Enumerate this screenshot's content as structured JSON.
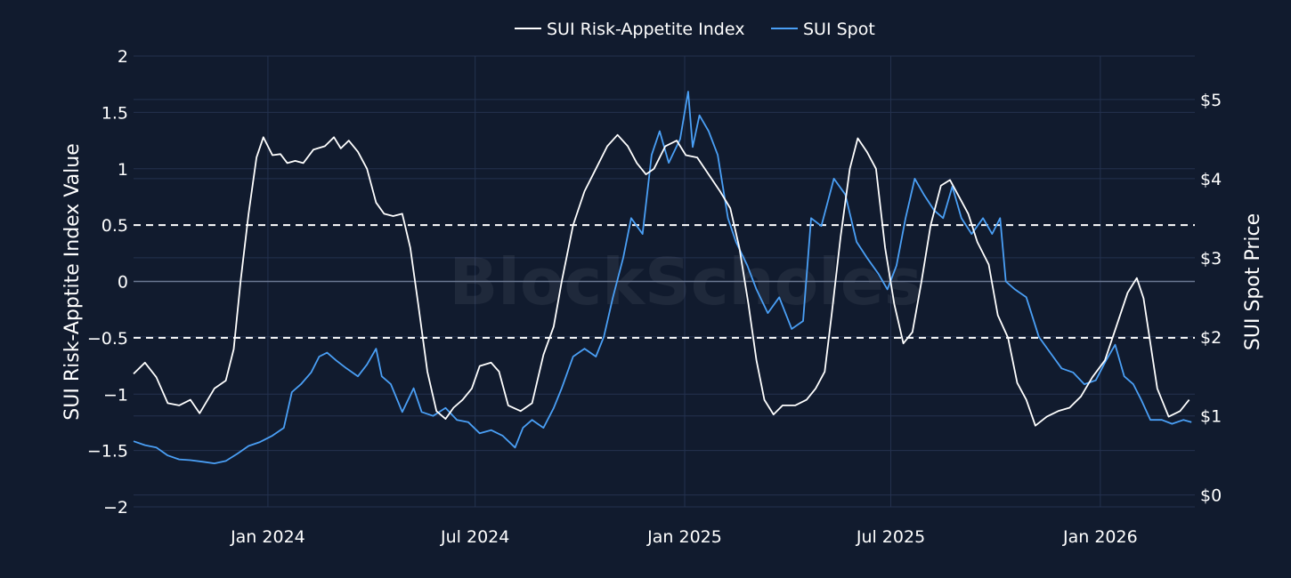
{
  "colors": {
    "background": "#111b2e",
    "grid": "#24324f",
    "zero_line": "#6b7892",
    "threshold_line": "#ffffff",
    "index_line": "#ffffff",
    "spot_line": "#4a9ff5"
  },
  "watermark": "BlockScholes",
  "chart_data": {
    "type": "line",
    "legend": {
      "placement": "top-center",
      "entries": [
        "SUI Risk-Appetite Index",
        "SUI Spot"
      ]
    },
    "xlabel": "",
    "ylabel_left": "SUI Risk-Apptite Index Value",
    "ylabel_right": "SUI Spot Price",
    "grid": true,
    "x_range": [
      "2023-09-05",
      "2026-03-25"
    ],
    "y_left_range": [
      -2,
      2
    ],
    "y_right_range": [
      -0.15,
      5.55
    ],
    "x_ticks": [
      {
        "date": "2024-01-01",
        "label": "Jan 2024"
      },
      {
        "date": "2024-07-01",
        "label": "Jul 2024"
      },
      {
        "date": "2025-01-01",
        "label": "Jan 2025"
      },
      {
        "date": "2025-07-01",
        "label": "Jul 2025"
      },
      {
        "date": "2026-01-01",
        "label": "Jan 2026"
      }
    ],
    "y_left_ticks": [
      {
        "value": 2,
        "label": "2"
      },
      {
        "value": 1.5,
        "label": "1.5"
      },
      {
        "value": 1,
        "label": "1"
      },
      {
        "value": 0.5,
        "label": "0.5"
      },
      {
        "value": 0,
        "label": "0"
      },
      {
        "value": -0.5,
        "label": "−0.5"
      },
      {
        "value": -1,
        "label": "−1"
      },
      {
        "value": -1.5,
        "label": "−1.5"
      },
      {
        "value": -2,
        "label": "−2"
      }
    ],
    "y_right_ticks": [
      {
        "value": 0,
        "label": "$0"
      },
      {
        "value": 1,
        "label": "$1"
      },
      {
        "value": 2,
        "label": "$2"
      },
      {
        "value": 3,
        "label": "$3"
      },
      {
        "value": 4,
        "label": "$4"
      },
      {
        "value": 5,
        "label": "$5"
      }
    ],
    "thresholds": [
      0.5,
      -0.5
    ],
    "series": [
      {
        "name": "SUI Risk-Appetite Index",
        "axis": "left",
        "points": [
          [
            "2023-09-05",
            -0.82
          ],
          [
            "2023-09-15",
            -0.72
          ],
          [
            "2023-09-25",
            -0.85
          ],
          [
            "2023-10-05",
            -1.08
          ],
          [
            "2023-10-15",
            -1.1
          ],
          [
            "2023-10-25",
            -1.05
          ],
          [
            "2023-11-02",
            -1.17
          ],
          [
            "2023-11-15",
            -0.95
          ],
          [
            "2023-11-25",
            -0.88
          ],
          [
            "2023-12-02",
            -0.6
          ],
          [
            "2023-12-08",
            0.0
          ],
          [
            "2023-12-15",
            0.6
          ],
          [
            "2023-12-22",
            1.1
          ],
          [
            "2023-12-28",
            1.28
          ],
          [
            "2024-01-05",
            1.12
          ],
          [
            "2024-01-12",
            1.13
          ],
          [
            "2024-01-18",
            1.05
          ],
          [
            "2024-01-25",
            1.07
          ],
          [
            "2024-02-01",
            1.05
          ],
          [
            "2024-02-10",
            1.17
          ],
          [
            "2024-02-20",
            1.2
          ],
          [
            "2024-02-28",
            1.28
          ],
          [
            "2024-03-05",
            1.18
          ],
          [
            "2024-03-12",
            1.25
          ],
          [
            "2024-03-20",
            1.15
          ],
          [
            "2024-03-28",
            1.0
          ],
          [
            "2024-04-05",
            0.7
          ],
          [
            "2024-04-12",
            0.6
          ],
          [
            "2024-04-20",
            0.58
          ],
          [
            "2024-04-28",
            0.6
          ],
          [
            "2024-05-05",
            0.3
          ],
          [
            "2024-05-12",
            -0.2
          ],
          [
            "2024-05-20",
            -0.8
          ],
          [
            "2024-05-28",
            -1.15
          ],
          [
            "2024-06-05",
            -1.22
          ],
          [
            "2024-06-12",
            -1.12
          ],
          [
            "2024-06-20",
            -1.05
          ],
          [
            "2024-06-28",
            -0.95
          ],
          [
            "2024-07-05",
            -0.75
          ],
          [
            "2024-07-15",
            -0.72
          ],
          [
            "2024-07-22",
            -0.8
          ],
          [
            "2024-07-30",
            -1.1
          ],
          [
            "2024-08-10",
            -1.15
          ],
          [
            "2024-08-20",
            -1.08
          ],
          [
            "2024-08-30",
            -0.65
          ],
          [
            "2024-09-08",
            -0.4
          ],
          [
            "2024-09-15",
            0.0
          ],
          [
            "2024-09-25",
            0.5
          ],
          [
            "2024-10-05",
            0.8
          ],
          [
            "2024-10-15",
            1.0
          ],
          [
            "2024-10-25",
            1.2
          ],
          [
            "2024-11-03",
            1.3
          ],
          [
            "2024-11-12",
            1.2
          ],
          [
            "2024-11-20",
            1.05
          ],
          [
            "2024-11-28",
            0.95
          ],
          [
            "2024-12-05",
            1.0
          ],
          [
            "2024-12-15",
            1.2
          ],
          [
            "2024-12-25",
            1.25
          ],
          [
            "2025-01-02",
            1.12
          ],
          [
            "2025-01-12",
            1.1
          ],
          [
            "2025-01-22",
            0.95
          ],
          [
            "2025-02-01",
            0.8
          ],
          [
            "2025-02-10",
            0.65
          ],
          [
            "2025-02-18",
            0.3
          ],
          [
            "2025-02-26",
            -0.2
          ],
          [
            "2025-03-05",
            -0.7
          ],
          [
            "2025-03-12",
            -1.05
          ],
          [
            "2025-03-20",
            -1.18
          ],
          [
            "2025-03-28",
            -1.1
          ],
          [
            "2025-04-08",
            -1.1
          ],
          [
            "2025-04-18",
            -1.05
          ],
          [
            "2025-04-26",
            -0.95
          ],
          [
            "2025-05-04",
            -0.8
          ],
          [
            "2025-05-10",
            -0.3
          ],
          [
            "2025-05-18",
            0.4
          ],
          [
            "2025-05-26",
            1.0
          ],
          [
            "2025-06-02",
            1.27
          ],
          [
            "2025-06-10",
            1.15
          ],
          [
            "2025-06-18",
            1.0
          ],
          [
            "2025-06-26",
            0.3
          ],
          [
            "2025-07-04",
            -0.2
          ],
          [
            "2025-07-12",
            -0.55
          ],
          [
            "2025-07-20",
            -0.45
          ],
          [
            "2025-07-28",
            0.0
          ],
          [
            "2025-08-05",
            0.5
          ],
          [
            "2025-08-14",
            0.85
          ],
          [
            "2025-08-22",
            0.9
          ],
          [
            "2025-08-30",
            0.75
          ],
          [
            "2025-09-07",
            0.6
          ],
          [
            "2025-09-15",
            0.35
          ],
          [
            "2025-09-25",
            0.15
          ],
          [
            "2025-10-03",
            -0.3
          ],
          [
            "2025-10-12",
            -0.5
          ],
          [
            "2025-10-20",
            -0.9
          ],
          [
            "2025-10-28",
            -1.05
          ],
          [
            "2025-11-05",
            -1.28
          ],
          [
            "2025-11-15",
            -1.2
          ],
          [
            "2025-11-25",
            -1.15
          ],
          [
            "2025-12-05",
            -1.12
          ],
          [
            "2025-12-15",
            -1.02
          ],
          [
            "2025-12-25",
            -0.85
          ],
          [
            "2026-01-05",
            -0.7
          ],
          [
            "2026-01-15",
            -0.4
          ],
          [
            "2026-01-25",
            -0.1
          ],
          [
            "2026-02-02",
            0.03
          ],
          [
            "2026-02-08",
            -0.15
          ],
          [
            "2026-02-14",
            -0.55
          ],
          [
            "2026-02-20",
            -0.95
          ],
          [
            "2026-03-02",
            -1.2
          ],
          [
            "2026-03-12",
            -1.15
          ],
          [
            "2026-03-20",
            -1.05
          ]
        ]
      },
      {
        "name": "SUI Spot",
        "axis": "right",
        "points": [
          [
            "2023-09-05",
            0.68
          ],
          [
            "2023-09-15",
            0.63
          ],
          [
            "2023-09-25",
            0.6
          ],
          [
            "2023-10-05",
            0.5
          ],
          [
            "2023-10-15",
            0.45
          ],
          [
            "2023-10-25",
            0.44
          ],
          [
            "2023-11-05",
            0.42
          ],
          [
            "2023-11-15",
            0.4
          ],
          [
            "2023-11-25",
            0.43
          ],
          [
            "2023-12-05",
            0.52
          ],
          [
            "2023-12-15",
            0.62
          ],
          [
            "2023-12-25",
            0.67
          ],
          [
            "2024-01-05",
            0.75
          ],
          [
            "2024-01-15",
            0.85
          ],
          [
            "2024-01-22",
            1.3
          ],
          [
            "2024-01-30",
            1.4
          ],
          [
            "2024-02-08",
            1.55
          ],
          [
            "2024-02-15",
            1.75
          ],
          [
            "2024-02-22",
            1.8
          ],
          [
            "2024-03-01",
            1.7
          ],
          [
            "2024-03-10",
            1.6
          ],
          [
            "2024-03-20",
            1.5
          ],
          [
            "2024-03-28",
            1.65
          ],
          [
            "2024-04-05",
            1.85
          ],
          [
            "2024-04-10",
            1.5
          ],
          [
            "2024-04-18",
            1.4
          ],
          [
            "2024-04-28",
            1.05
          ],
          [
            "2024-05-08",
            1.35
          ],
          [
            "2024-05-15",
            1.05
          ],
          [
            "2024-05-25",
            1.0
          ],
          [
            "2024-06-05",
            1.1
          ],
          [
            "2024-06-15",
            0.95
          ],
          [
            "2024-06-25",
            0.92
          ],
          [
            "2024-07-05",
            0.78
          ],
          [
            "2024-07-15",
            0.82
          ],
          [
            "2024-07-25",
            0.75
          ],
          [
            "2024-08-05",
            0.6
          ],
          [
            "2024-08-12",
            0.85
          ],
          [
            "2024-08-20",
            0.95
          ],
          [
            "2024-08-30",
            0.85
          ],
          [
            "2024-09-08",
            1.1
          ],
          [
            "2024-09-15",
            1.35
          ],
          [
            "2024-09-25",
            1.75
          ],
          [
            "2024-10-05",
            1.85
          ],
          [
            "2024-10-15",
            1.75
          ],
          [
            "2024-10-22",
            2.0
          ],
          [
            "2024-10-30",
            2.5
          ],
          [
            "2024-11-08",
            3.0
          ],
          [
            "2024-11-15",
            3.5
          ],
          [
            "2024-11-25",
            3.3
          ],
          [
            "2024-12-03",
            4.3
          ],
          [
            "2024-12-10",
            4.6
          ],
          [
            "2024-12-18",
            4.2
          ],
          [
            "2024-12-28",
            4.5
          ],
          [
            "2025-01-04",
            5.1
          ],
          [
            "2025-01-08",
            4.4
          ],
          [
            "2025-01-14",
            4.8
          ],
          [
            "2025-01-22",
            4.6
          ],
          [
            "2025-01-30",
            4.3
          ],
          [
            "2025-02-08",
            3.5
          ],
          [
            "2025-02-15",
            3.2
          ],
          [
            "2025-02-25",
            2.9
          ],
          [
            "2025-03-05",
            2.6
          ],
          [
            "2025-03-15",
            2.3
          ],
          [
            "2025-03-25",
            2.5
          ],
          [
            "2025-04-05",
            2.1
          ],
          [
            "2025-04-15",
            2.2
          ],
          [
            "2025-04-22",
            3.5
          ],
          [
            "2025-05-01",
            3.4
          ],
          [
            "2025-05-12",
            4.0
          ],
          [
            "2025-05-22",
            3.8
          ],
          [
            "2025-06-01",
            3.2
          ],
          [
            "2025-06-10",
            3.0
          ],
          [
            "2025-06-20",
            2.8
          ],
          [
            "2025-06-28",
            2.6
          ],
          [
            "2025-07-06",
            2.9
          ],
          [
            "2025-07-14",
            3.5
          ],
          [
            "2025-07-22",
            4.0
          ],
          [
            "2025-07-30",
            3.8
          ],
          [
            "2025-08-08",
            3.6
          ],
          [
            "2025-08-16",
            3.5
          ],
          [
            "2025-08-24",
            3.9
          ],
          [
            "2025-09-01",
            3.5
          ],
          [
            "2025-09-10",
            3.3
          ],
          [
            "2025-09-20",
            3.5
          ],
          [
            "2025-09-28",
            3.3
          ],
          [
            "2025-10-05",
            3.5
          ],
          [
            "2025-10-10",
            2.7
          ],
          [
            "2025-10-18",
            2.6
          ],
          [
            "2025-10-28",
            2.5
          ],
          [
            "2025-11-08",
            2.0
          ],
          [
            "2025-11-18",
            1.8
          ],
          [
            "2025-11-28",
            1.6
          ],
          [
            "2025-12-08",
            1.55
          ],
          [
            "2025-12-18",
            1.4
          ],
          [
            "2025-12-28",
            1.45
          ],
          [
            "2026-01-06",
            1.7
          ],
          [
            "2026-01-14",
            1.9
          ],
          [
            "2026-01-22",
            1.5
          ],
          [
            "2026-01-30",
            1.4
          ],
          [
            "2026-02-06",
            1.2
          ],
          [
            "2026-02-14",
            0.95
          ],
          [
            "2026-02-24",
            0.95
          ],
          [
            "2026-03-05",
            0.9
          ],
          [
            "2026-03-15",
            0.95
          ],
          [
            "2026-03-22",
            0.92
          ]
        ]
      }
    ]
  }
}
